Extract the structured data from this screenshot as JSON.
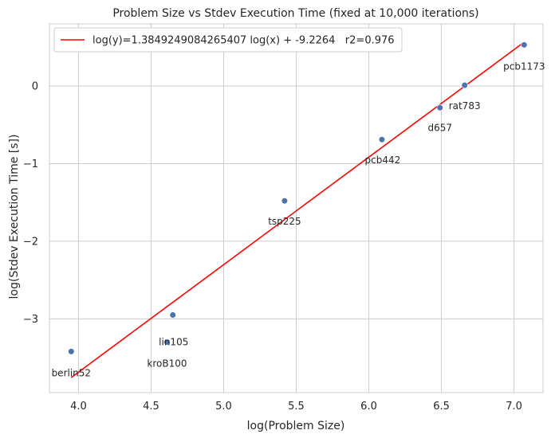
{
  "chart_data": {
    "type": "scatter",
    "title": "Problem Size vs Stdev Execution Time (fixed at 10,000 iterations)",
    "xlabel": "log(Problem Size)",
    "ylabel": "log(Stdev Execution Time [s])",
    "xlim": [
      3.8,
      7.2
    ],
    "ylim": [
      -3.95,
      0.8
    ],
    "xticks": [
      4.0,
      4.5,
      5.0,
      5.5,
      6.0,
      6.5,
      7.0
    ],
    "xtick_labels": [
      "4.0",
      "4.5",
      "5.0",
      "5.5",
      "6.0",
      "6.5",
      "7.0"
    ],
    "yticks": [
      -3,
      -2,
      -1,
      0
    ],
    "ytick_labels": [
      "−3",
      "−2",
      "−1",
      "0"
    ],
    "grid": true,
    "legend_position": "top-left",
    "points": [
      {
        "label": "berlin52",
        "x": 3.95,
        "y": -3.42
      },
      {
        "label": "kroB100",
        "x": 4.61,
        "y": -3.3
      },
      {
        "label": "lin105",
        "x": 4.65,
        "y": -2.95
      },
      {
        "label": "tsp225",
        "x": 5.42,
        "y": -1.48
      },
      {
        "label": "pcb442",
        "x": 6.09,
        "y": -0.69
      },
      {
        "label": "d657",
        "x": 6.49,
        "y": -0.28
      },
      {
        "label": "rat783",
        "x": 6.66,
        "y": 0.01
      },
      {
        "label": "pcb1173",
        "x": 7.07,
        "y": 0.53
      }
    ],
    "fit_line": {
      "label": "log(y)=1.3849249084265407 log(x) + -9.2264   r2=0.976",
      "slope": 1.3849249084265407,
      "intercept": -9.2264,
      "x_range": [
        3.95,
        7.07
      ]
    },
    "colors": {
      "points": "#4c72b0",
      "fit_line": "#ff0000",
      "grid": "#cccccc",
      "axis": "#cccccc"
    }
  }
}
